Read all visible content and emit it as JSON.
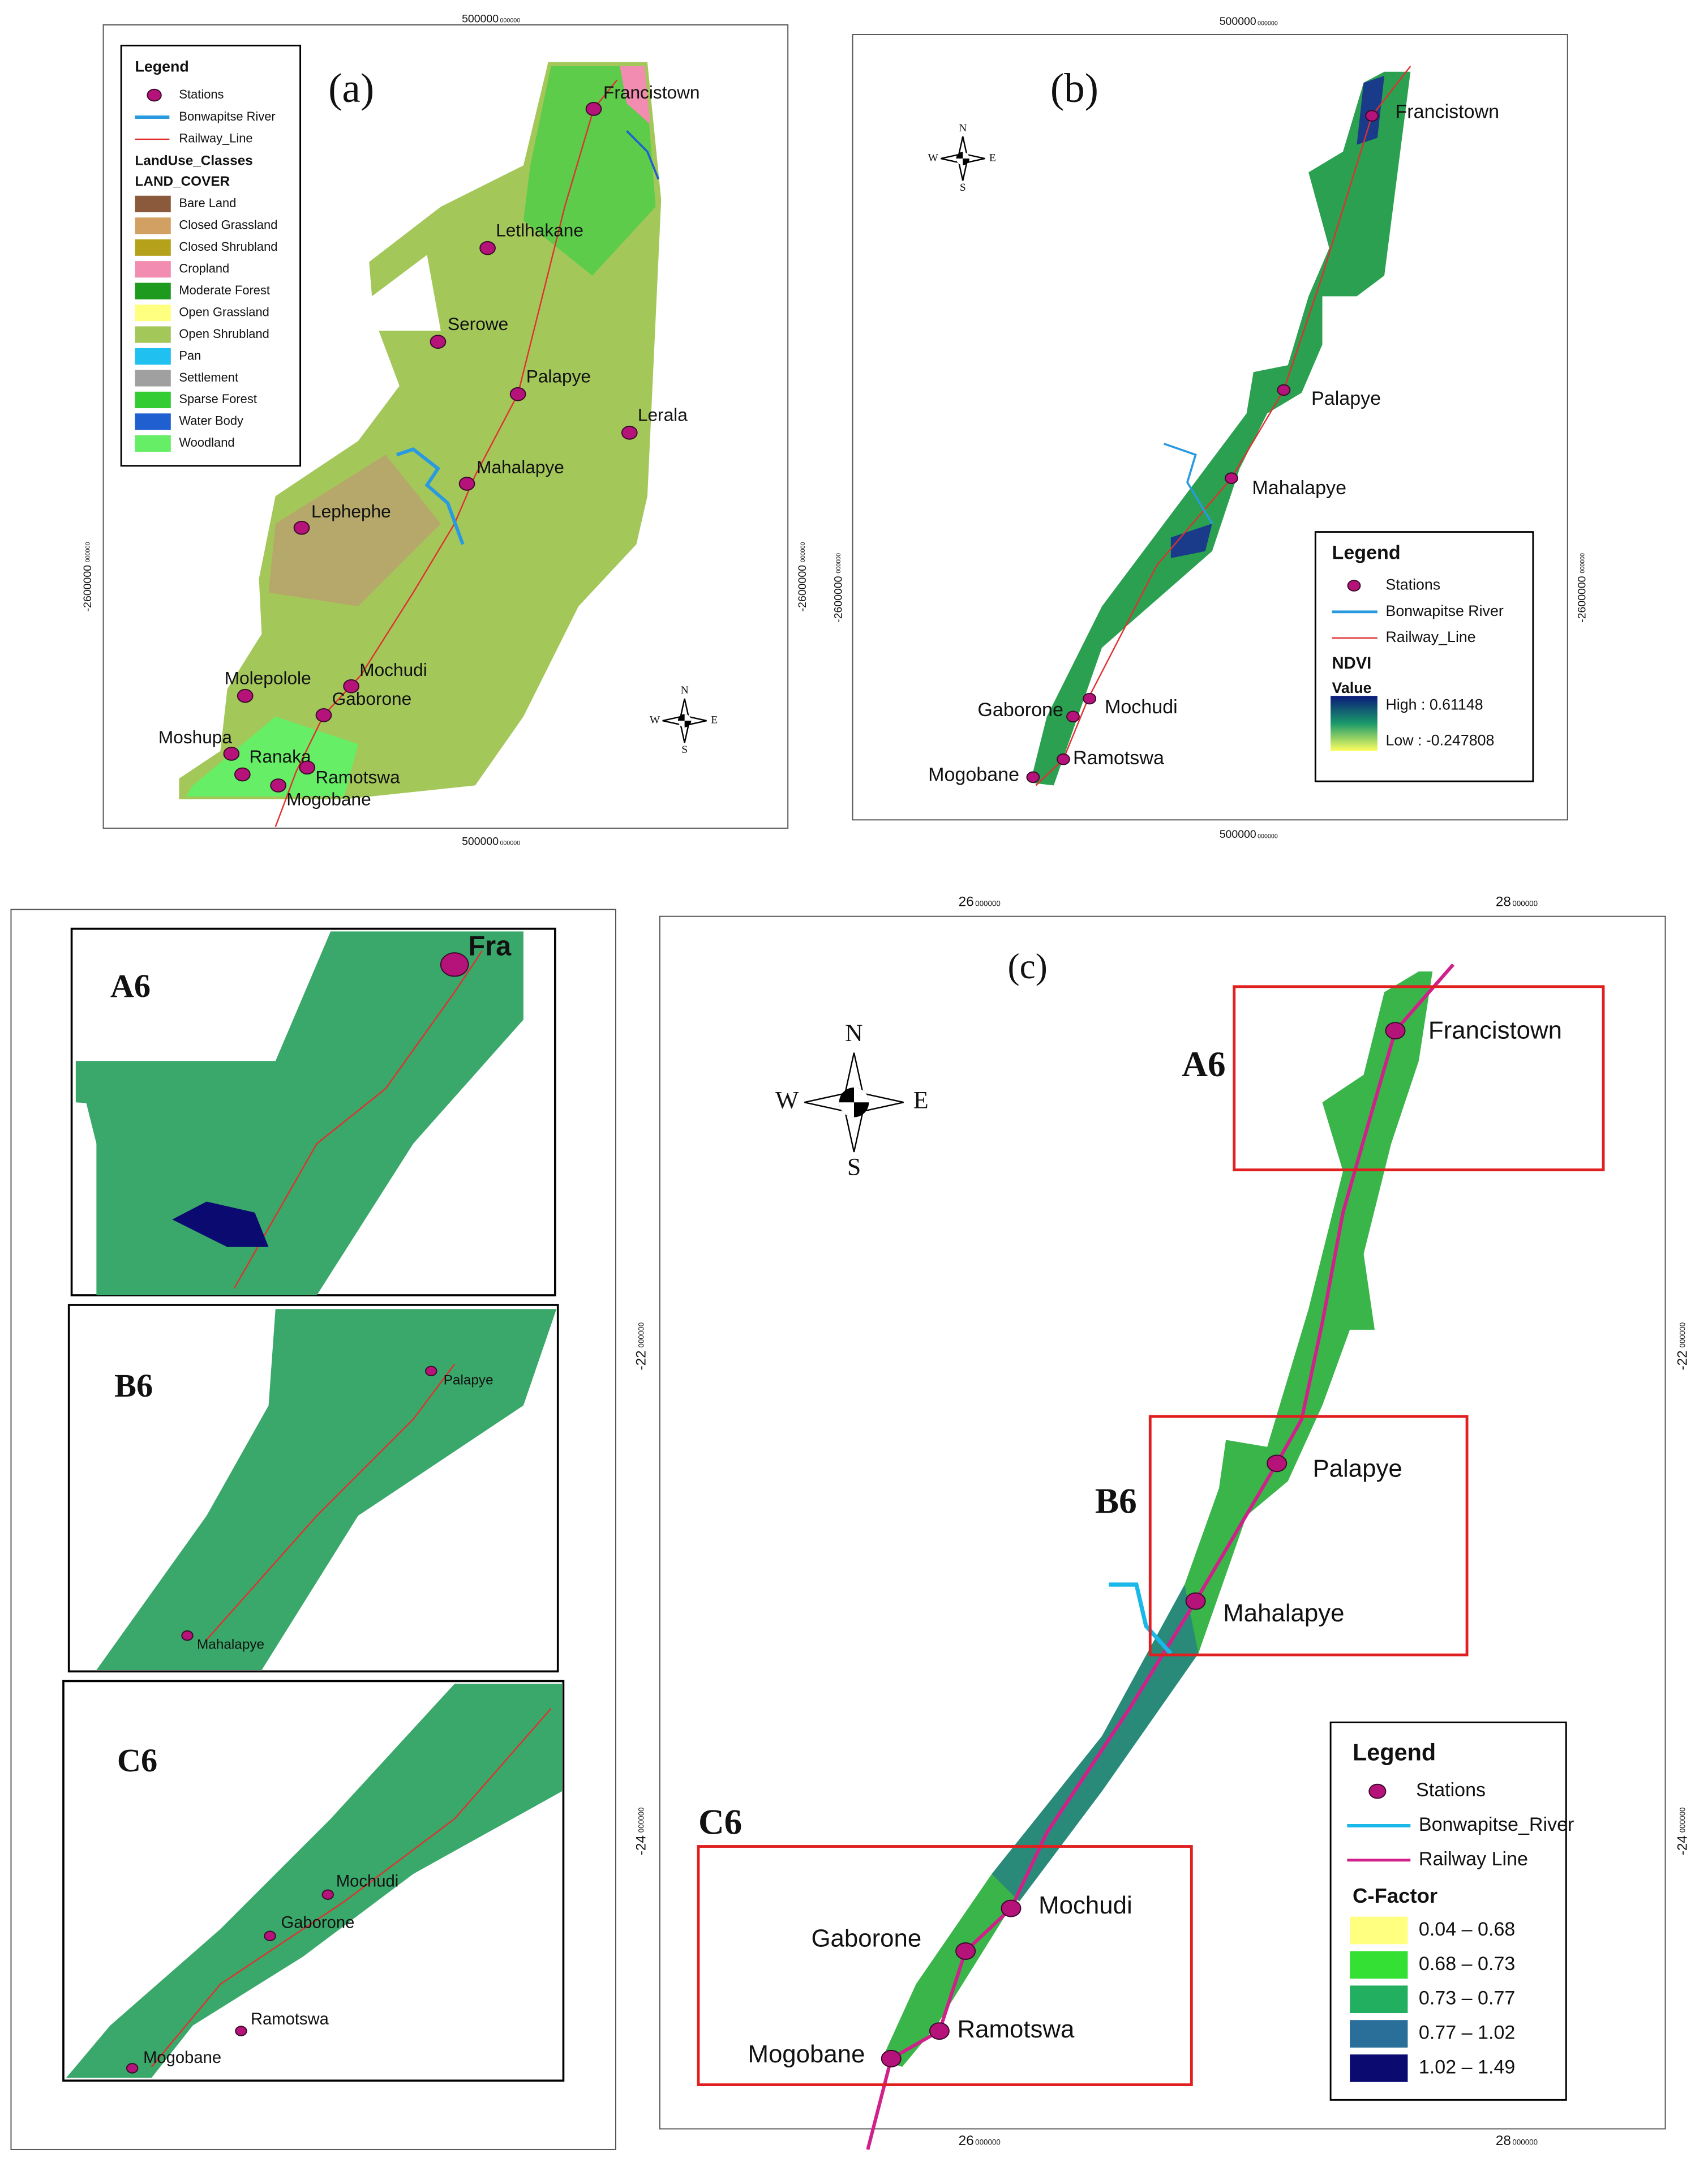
{
  "panel_a": {
    "label": "(a)",
    "ticks": [
      {
        "text": "500000",
        "sub": "000000"
      },
      {
        "text": "500000",
        "sub": "000000"
      },
      {
        "text": "-2600000",
        "sub": "000000"
      },
      {
        "text": "-2600000",
        "sub": "000000"
      }
    ],
    "compass": [
      "N",
      "E",
      "S",
      "W"
    ],
    "legend": {
      "title": "Legend",
      "stations": "Stations",
      "river": "Bonwapitse River",
      "railway": "Railway_Line",
      "classes_title": "LandUse_Classes",
      "field": "LAND_COVER",
      "classes": [
        {
          "name": "Bare Land",
          "color": "#8b5a3c"
        },
        {
          "name": "Closed Grassland",
          "color": "#d2a062"
        },
        {
          "name": "Closed Shrubland",
          "color": "#b5a21a"
        },
        {
          "name": "Cropland",
          "color": "#f28cb1"
        },
        {
          "name": "Moderate Forest",
          "color": "#1e9a1e"
        },
        {
          "name": "Open Grassland",
          "color": "#ffff80"
        },
        {
          "name": "Open Shrubland",
          "color": "#a4c75a"
        },
        {
          "name": "Pan",
          "color": "#20c0f0"
        },
        {
          "name": "Settlement",
          "color": "#a0a0a0"
        },
        {
          "name": "Sparse Forest",
          "color": "#33cc33"
        },
        {
          "name": "Water Body",
          "color": "#1f5fd0"
        },
        {
          "name": "Woodland",
          "color": "#66ee66"
        }
      ]
    },
    "stations": [
      "Francistown",
      "Letlhakane",
      "Serowe",
      "Palapye",
      "Lerala",
      "Mahalapye",
      "Lephephe",
      "Molepolole",
      "Mochudi",
      "Gaborone",
      "Moshupa",
      "Ranaka",
      "Ramotswa",
      "Mogobane"
    ]
  },
  "panel_b": {
    "label": "(b)",
    "ticks": [
      {
        "text": "500000",
        "sub": "000000"
      },
      {
        "text": "500000",
        "sub": "000000"
      },
      {
        "text": "-2600000",
        "sub": "000000"
      },
      {
        "text": "-2600000",
        "sub": "000000"
      }
    ],
    "compass": [
      "N",
      "E",
      "S",
      "W"
    ],
    "legend": {
      "title": "Legend",
      "stations": "Stations",
      "river": "Bonwapitse River",
      "railway": "Railway_Line",
      "index": "NDVI",
      "value": "Value",
      "high": "High : 0.61148",
      "low": "Low : -0.247808"
    },
    "stations": [
      "Francistown",
      "Palapye",
      "Mahalapye",
      "Mochudi",
      "Gaborone",
      "Ramotswa",
      "Mogobane"
    ]
  },
  "insets": [
    {
      "label": "A6",
      "stations": [
        "Fra"
      ]
    },
    {
      "label": "B6",
      "stations": [
        "Palapye",
        "Mahalapye"
      ]
    },
    {
      "label": "C6",
      "stations": [
        "Mochudi",
        "Gaborone",
        "Ramotswa",
        "Mogobane"
      ]
    }
  ],
  "panel_c": {
    "label": "(c)",
    "ticks": [
      {
        "text": "26",
        "sub": "000000"
      },
      {
        "text": "28",
        "sub": "000000"
      },
      {
        "text": "26",
        "sub": "000000"
      },
      {
        "text": "28",
        "sub": "000000"
      },
      {
        "text": "-22",
        "sub": "000000"
      },
      {
        "text": "-24",
        "sub": "000000"
      },
      {
        "text": "-22",
        "sub": "000000"
      },
      {
        "text": "-24",
        "sub": "000000"
      }
    ],
    "compass": [
      "N",
      "E",
      "S",
      "W"
    ],
    "boxes": [
      "A6",
      "B6",
      "C6"
    ],
    "legend": {
      "title": "Legend",
      "stations": "Stations",
      "river": "Bonwapitse_River",
      "railway": "Railway Line",
      "factor": "C-Factor",
      "classes": [
        {
          "name": "0.04 – 0.68",
          "color": "#ffff80"
        },
        {
          "name": "0.68 – 0.73",
          "color": "#33e033"
        },
        {
          "name": "0.73 – 0.77",
          "color": "#22b060"
        },
        {
          "name": "0.77 – 1.02",
          "color": "#2a6e9a"
        },
        {
          "name": "1.02 – 1.49",
          "color": "#0a0a70"
        }
      ]
    },
    "stations": [
      "Francistown",
      "Palapye",
      "Mahalapye",
      "Mochudi",
      "Gaborone",
      "Ramotswa",
      "Mogobane"
    ]
  }
}
